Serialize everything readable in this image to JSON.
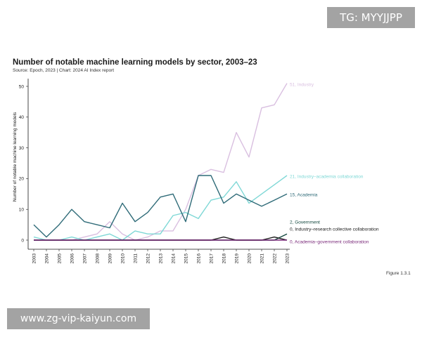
{
  "watermarks": {
    "top": "TG: MYYJJPP",
    "bottom": "www.zg-vip-kaiyun.com"
  },
  "chart_data": {
    "type": "line",
    "title": "Number of notable machine learning models by sector, 2003–23",
    "subtitle": "Source: Epoch, 2023 | Chart: 2024 AI Index report",
    "figure_label": "Figure 1.3.1",
    "xlabel": "",
    "ylabel": "Number of notable machine learning models",
    "ylim": [
      0,
      55
    ],
    "yticks": [
      0,
      10,
      20,
      30,
      40,
      50
    ],
    "grid": false,
    "x": [
      2003,
      2004,
      2005,
      2006,
      2007,
      2008,
      2009,
      2010,
      2011,
      2012,
      2013,
      2014,
      2015,
      2016,
      2017,
      2018,
      2019,
      2020,
      2021,
      2022,
      2023
    ],
    "series": [
      {
        "name": "Industry",
        "end_label": "51, Industry",
        "color": "#d9bfe0",
        "values": [
          0,
          0,
          0,
          0,
          1,
          2,
          6,
          2,
          0,
          1,
          3,
          3,
          10,
          21,
          23,
          22,
          35,
          27,
          43,
          44,
          51
        ]
      },
      {
        "name": "Industry–academia collaboration",
        "end_label": "21, Industry–academia collaboration",
        "color": "#7fd8d6",
        "values": [
          1,
          0,
          0,
          1,
          0,
          1,
          2,
          0,
          3,
          2,
          2,
          8,
          9,
          7,
          13,
          14,
          19,
          12,
          15,
          18,
          21
        ]
      },
      {
        "name": "Academia",
        "end_label": "15, Academia",
        "color": "#2f6b78",
        "values": [
          5,
          1,
          5,
          10,
          6,
          5,
          4,
          12,
          6,
          9,
          14,
          15,
          6,
          21,
          21,
          12,
          15,
          13,
          11,
          13,
          15
        ]
      },
      {
        "name": "Government",
        "end_label": "2, Government",
        "color": "#164a40",
        "values": [
          0,
          0,
          0,
          0,
          0,
          0,
          0,
          0,
          0,
          0,
          0,
          0,
          0,
          0,
          0,
          0,
          0,
          0,
          0,
          0,
          2
        ]
      },
      {
        "name": "Industry–research collective collaboration",
        "end_label": "0, Industry–research collective collaboration",
        "color": "#1a1a1a",
        "values": [
          0,
          0,
          0,
          0,
          0,
          0,
          0,
          0,
          0,
          0,
          0,
          0,
          0,
          0,
          0,
          1,
          0,
          0,
          0,
          1,
          0
        ]
      },
      {
        "name": "Academia–government collaboration",
        "end_label": "0, Academia–government collaboration",
        "color": "#7a2a7a",
        "values": [
          0,
          0,
          0,
          0,
          0,
          0,
          0,
          0,
          0,
          0,
          0,
          0,
          0,
          0,
          0,
          0,
          0,
          0,
          0,
          0,
          0
        ]
      }
    ]
  }
}
